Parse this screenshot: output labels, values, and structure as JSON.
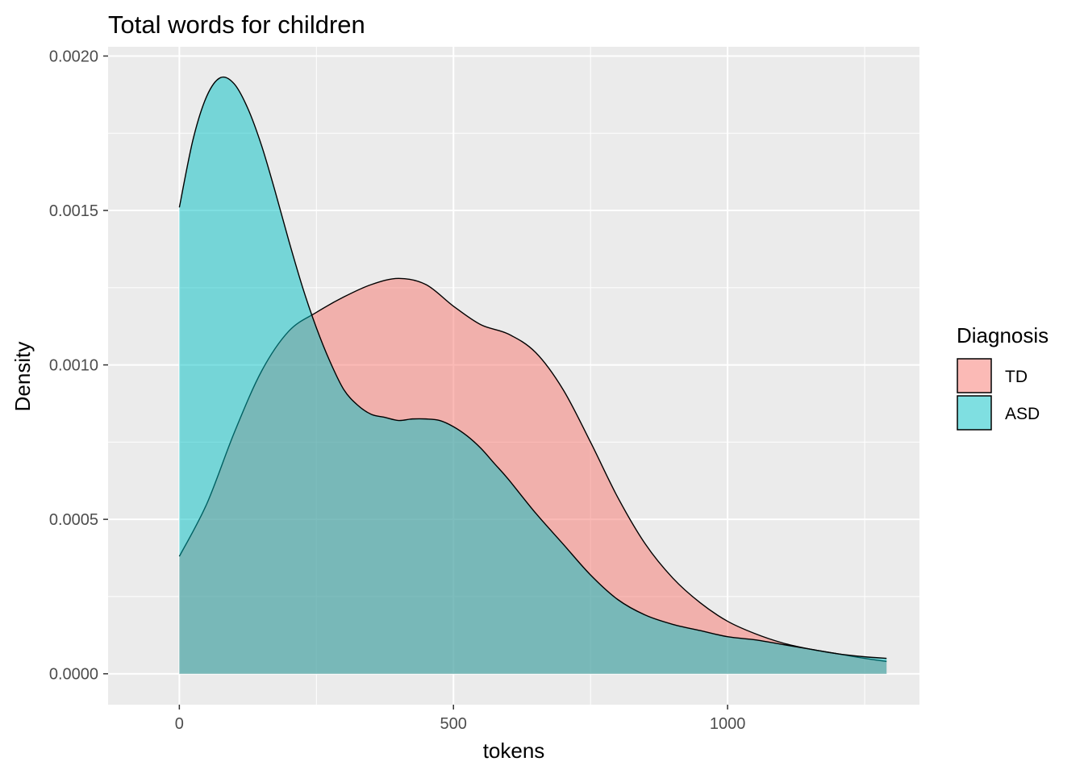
{
  "chart_data": {
    "type": "area",
    "title": "Total words for children",
    "xlabel": "tokens",
    "ylabel": "Density",
    "xlim": [
      -130,
      1350
    ],
    "ylim": [
      -0.0001,
      0.00203
    ],
    "x_ticks": [
      0,
      500,
      1000
    ],
    "x_tick_labels": [
      "0",
      "500",
      "1000"
    ],
    "x_minor_ticks": [
      250,
      750,
      1250
    ],
    "y_ticks": [
      0.0,
      0.0005,
      0.001,
      0.0015,
      0.002
    ],
    "y_tick_labels": [
      "0.0000",
      "0.0005",
      "0.0010",
      "0.0015",
      "0.0020"
    ],
    "y_minor_ticks": [
      0.00025,
      0.00075,
      0.00125,
      0.00175
    ],
    "grid": true,
    "legend": {
      "title": "Diagnosis",
      "position": "right"
    },
    "series": [
      {
        "name": "TD",
        "color": "#F8766D",
        "x": [
          0,
          50,
          100,
          150,
          200,
          250,
          300,
          350,
          400,
          450,
          500,
          550,
          600,
          650,
          700,
          750,
          800,
          850,
          900,
          950,
          1000,
          1050,
          1100,
          1150,
          1200,
          1250,
          1290
        ],
        "y": [
          0.00038,
          0.00055,
          0.00078,
          0.00098,
          0.00111,
          0.00117,
          0.00122,
          0.00126,
          0.00128,
          0.00126,
          0.00119,
          0.00113,
          0.0011,
          0.00104,
          0.00092,
          0.00075,
          0.00057,
          0.00042,
          0.00031,
          0.00023,
          0.00017,
          0.00013,
          0.0001,
          8e-05,
          6.5e-05,
          5e-05,
          4e-05
        ]
      },
      {
        "name": "ASD",
        "color": "#00BFC4",
        "x": [
          0,
          25,
          50,
          75,
          100,
          125,
          150,
          175,
          200,
          225,
          250,
          275,
          300,
          325,
          350,
          375,
          400,
          425,
          450,
          475,
          500,
          525,
          550,
          575,
          600,
          650,
          700,
          750,
          800,
          850,
          900,
          950,
          1000,
          1050,
          1100,
          1150,
          1200,
          1250,
          1290
        ],
        "y": [
          0.00151,
          0.00173,
          0.00187,
          0.00193,
          0.00191,
          0.00183,
          0.00171,
          0.00156,
          0.0014,
          0.00125,
          0.00112,
          0.00101,
          0.00092,
          0.00087,
          0.00084,
          0.00083,
          0.00082,
          0.000825,
          0.000825,
          0.00082,
          0.0008,
          0.00077,
          0.00073,
          0.00068,
          0.00063,
          0.00052,
          0.00042,
          0.00032,
          0.00024,
          0.00019,
          0.00016,
          0.00014,
          0.00012,
          0.00011,
          9.5e-05,
          8e-05,
          6.5e-05,
          5.5e-05,
          5e-05
        ]
      }
    ]
  }
}
